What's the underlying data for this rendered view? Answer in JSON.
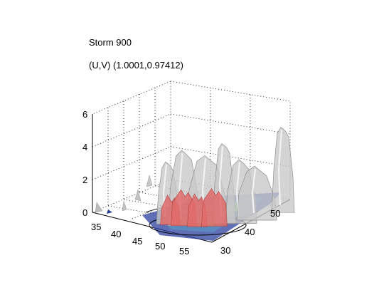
{
  "chart_data": {
    "type": "surface",
    "title": "Storm 900",
    "subtitle": "(U,V) (1.0001,0.97412)",
    "axes": {
      "x": {
        "label": "",
        "ticks": [
          35,
          40,
          45,
          50,
          55
        ]
      },
      "y": {
        "label": "",
        "ticks": [
          30,
          40,
          50
        ]
      },
      "z": {
        "label": "",
        "ticks": [
          0,
          2,
          4,
          6
        ],
        "zlim": [
          0,
          6
        ]
      }
    },
    "grid": true,
    "colors": {
      "outer_isosurface": "#c8c8c8",
      "inner_isosurface": "#e06a6a",
      "floor_slice_high": "#7fbf7f",
      "floor_slice_mid": "#5a8fc0",
      "floor_slice_low": "#1a2a8a",
      "streamline": "#000000"
    },
    "peaks": [
      {
        "x": 46.0,
        "y": 33,
        "z": 3.8
      },
      {
        "x": 48.5,
        "y": 34,
        "z": 4.6
      },
      {
        "x": 51.0,
        "y": 37,
        "z": 4.2
      },
      {
        "x": 53.0,
        "y": 39,
        "z": 4.9
      },
      {
        "x": 55.0,
        "y": 41,
        "z": 3.9
      },
      {
        "x": 56.0,
        "y": 44,
        "z": 3.3
      },
      {
        "x": 57.0,
        "y": 50,
        "z": 5.2
      }
    ],
    "inner_peaks": [
      {
        "x": 46.5,
        "y": 33,
        "z": 1.8
      },
      {
        "x": 48.5,
        "y": 34,
        "z": 2.2
      },
      {
        "x": 50.5,
        "y": 35,
        "z": 2.0
      },
      {
        "x": 52.5,
        "y": 37,
        "z": 2.3
      }
    ]
  }
}
